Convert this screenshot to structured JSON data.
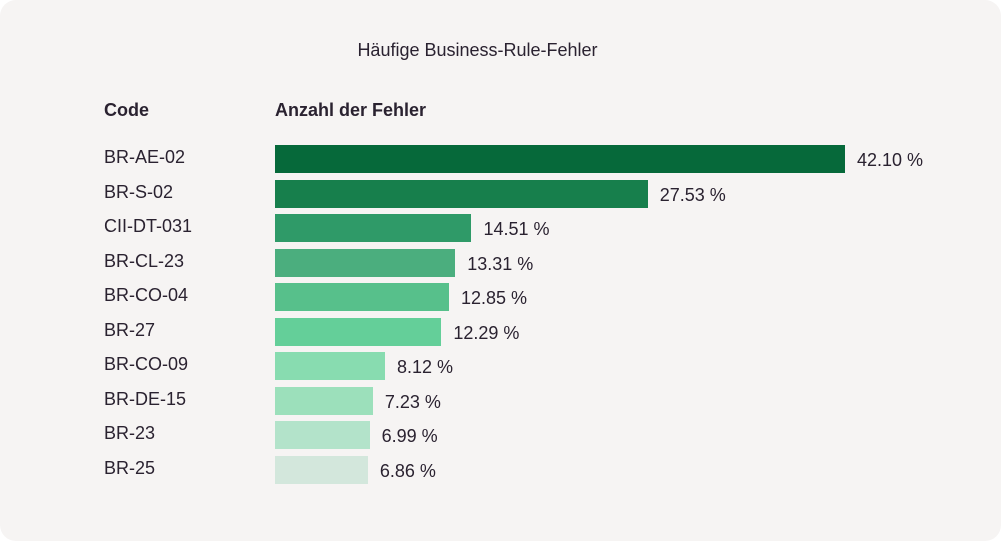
{
  "chart_data": {
    "type": "bar",
    "orientation": "horizontal",
    "title": "Häufige Business-Rule-Fehler",
    "column_headers": {
      "category": "Code",
      "value": "Anzahl der Fehler"
    },
    "categories": [
      "BR-AE-02",
      "BR-S-02",
      "CII-DT-031",
      "BR-CL-23",
      "BR-CO-04",
      "BR-27",
      "BR-CO-09",
      "BR-DE-15",
      "BR-23",
      "BR-25"
    ],
    "values": [
      42.1,
      27.53,
      14.51,
      13.31,
      12.85,
      12.29,
      8.12,
      7.23,
      6.99,
      6.86
    ],
    "labels": [
      "42.10 %",
      "27.53 %",
      "14.51 %",
      "13.31 %",
      "12.85 %",
      "12.29 %",
      "8.12 %",
      "7.23 %",
      "6.99 %",
      "6.86 %"
    ],
    "colors": [
      "#06693a",
      "#177f4c",
      "#2f9a68",
      "#4bae7e",
      "#57c08b",
      "#64cf99",
      "#88dcb0",
      "#9ce0bb",
      "#b3e3ca",
      "#d3e7dc"
    ],
    "grid": false,
    "legend": "none"
  }
}
